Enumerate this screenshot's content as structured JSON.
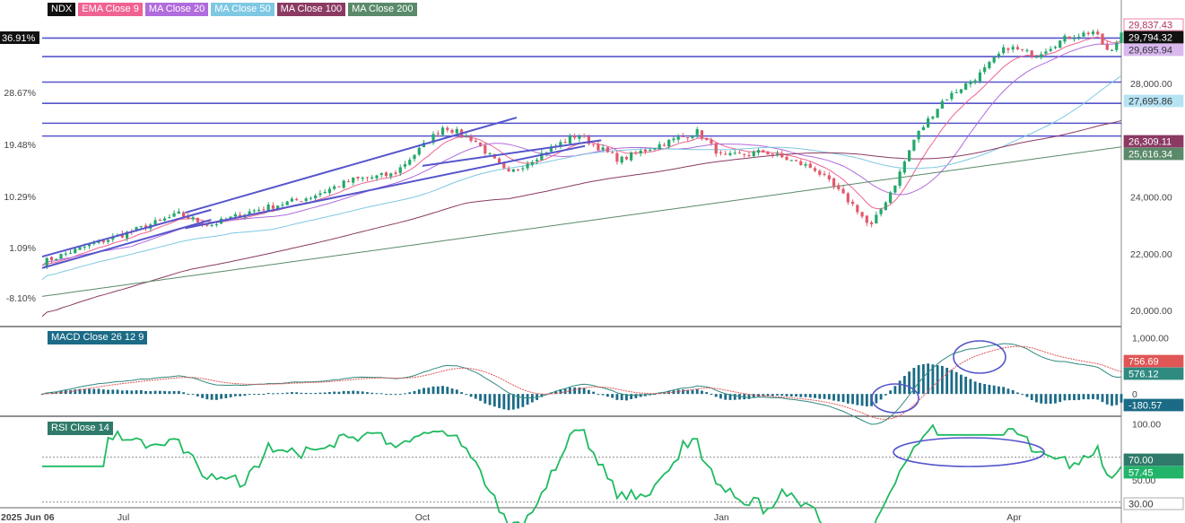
{
  "chart_data": [
    {
      "type": "candlestick",
      "panel": "price",
      "legend": [
        "NDX",
        "EMA Close 9",
        "MA Close 20",
        "MA Close 50",
        "MA Close 100",
        "MA Close 200"
      ],
      "legend_colors": [
        "#111111",
        "#f06292",
        "#b06bdc",
        "#7ec8e3",
        "#8b3a62",
        "#5a8a6a"
      ],
      "y_axis_left_pct": [
        "36.91%",
        "28.67%",
        "19.48%",
        "10.29%",
        "1.09%",
        "-8.10%"
      ],
      "y_axis_right_ticks": [
        "28,000.00",
        "24,000.00",
        "22,000.00",
        "20,000.00"
      ],
      "price_labels": [
        {
          "text": "29,837.43",
          "value": 29837.43,
          "bg": "#ffffff",
          "fg": "#b03060",
          "border": "#f06292"
        },
        {
          "text": "29,794.32",
          "value": 29794.32,
          "bg": "#111111",
          "fg": "#ffffff",
          "border": "#111111"
        },
        {
          "text": "29,695.94",
          "value": 29695.94,
          "bg": "#d9b8f0",
          "fg": "#333333",
          "border": "#d9b8f0"
        },
        {
          "text": "27,695.86",
          "value": 27695.86,
          "bg": "#b6e3f3",
          "fg": "#333333",
          "border": "#b6e3f3"
        },
        {
          "text": "26,309.11",
          "value": 26309.11,
          "bg": "#8b3a62",
          "fg": "#ffffff",
          "border": "#8b3a62"
        },
        {
          "text": "25,616.34",
          "value": 25616.34,
          "bg": "#5a8a6a",
          "fg": "#ffffff",
          "border": "#5a8a6a"
        }
      ],
      "current_pct_label": "36.91%",
      "horizontal_levels": [
        29600,
        28950,
        28050,
        27300,
        26600,
        26150
      ],
      "ylim": [
        19500,
        30500
      ],
      "ohlc_summary": {
        "start": 21750,
        "peak": 29837.43,
        "last": 29794.32
      },
      "trend_channels": [
        {
          "from": [
            "2025-06-06",
            21900
          ],
          "to": [
            "2025-07-28",
            23550
          ]
        },
        {
          "from": [
            "2025-06-06",
            21500
          ],
          "to": [
            "2025-07-28",
            23200
          ]
        },
        {
          "from": [
            "2025-07-20",
            23450
          ],
          "to": [
            "2025-10-30",
            26800
          ]
        },
        {
          "from": [
            "2025-07-20",
            22900
          ],
          "to": [
            "2025-11-20",
            25800
          ]
        },
        {
          "from": [
            "2025-10-01",
            25100
          ],
          "to": [
            "2025-11-25",
            26000
          ]
        }
      ]
    },
    {
      "type": "line+histogram",
      "panel": "macd",
      "legend": [
        "MACD Close 26 12 9"
      ],
      "y_ticks": [
        "1,000.00",
        "0"
      ],
      "labels": [
        {
          "text": "756.69",
          "value": 756.69,
          "bg": "#e05555"
        },
        {
          "text": "576.12",
          "value": 576.12,
          "bg": "#2f8a80"
        },
        {
          "text": "-180.57",
          "value": -180.57,
          "bg": "#1b6b86"
        }
      ],
      "ylim": [
        -380,
        1150
      ]
    },
    {
      "type": "line",
      "panel": "rsi",
      "legend": [
        "RSI Close 14"
      ],
      "y_ticks": [
        "100.00",
        "50.00"
      ],
      "labels": [
        {
          "text": "70.00",
          "value": 70,
          "bg": "#2f7a6a"
        },
        {
          "text": "57.45",
          "value": 57.45,
          "bg": "#22b56a"
        },
        {
          "text": "30.00",
          "value": 30,
          "bg": "#ffffff"
        }
      ],
      "levels": [
        70,
        30
      ],
      "ylim": [
        25,
        105
      ]
    }
  ],
  "x_axis": {
    "ticks": [
      {
        "date": "2025-06-06",
        "label": "2025 Jun 06",
        "bold": true
      },
      {
        "date": "2025-07-01",
        "label": "Jul",
        "bold": false
      },
      {
        "date": "2025-10-01",
        "label": "Oct",
        "bold": false
      },
      {
        "date": "2026-01-01",
        "label": "Jan",
        "bold": false
      },
      {
        "date": "2026-04-01",
        "label": "Apr",
        "bold": false
      }
    ],
    "range": [
      "2025-06-06",
      "2026-05-04"
    ]
  },
  "colors": {
    "up": "#22a86a",
    "down": "#e05a6a",
    "level": "#5555cc",
    "rsi": "#1fba60"
  }
}
